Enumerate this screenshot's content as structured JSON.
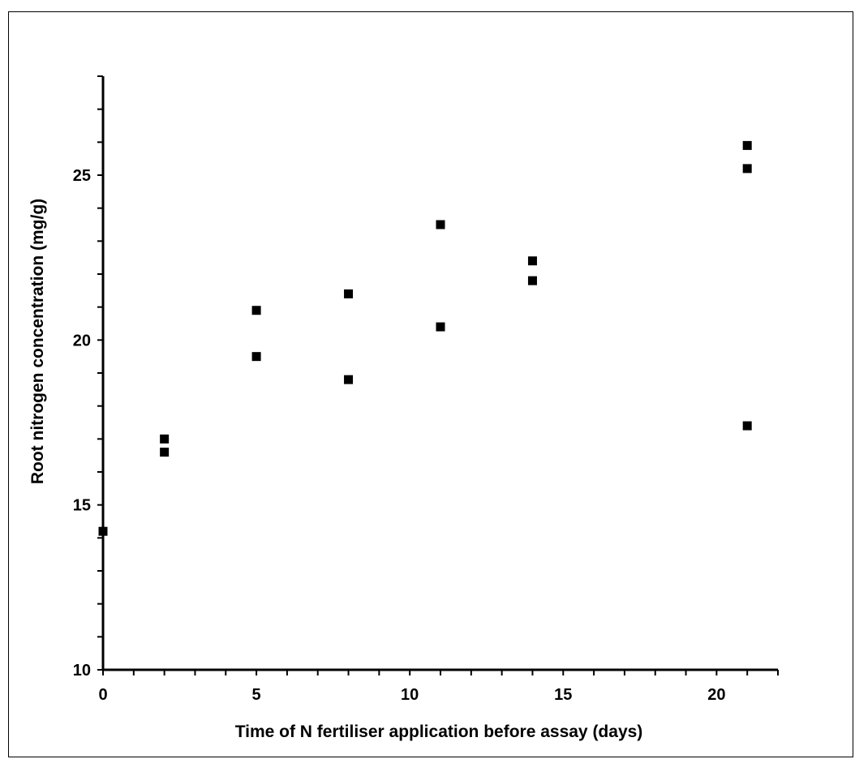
{
  "chart_data": {
    "type": "scatter",
    "title": "",
    "xlabel": "Time of N fertiliser application before assay (days)",
    "ylabel": "Root nitrogen concentration (mg/g)",
    "xlim": [
      0,
      22
    ],
    "ylim": [
      10,
      28
    ],
    "x_ticks": [
      0,
      5,
      10,
      15,
      20
    ],
    "y_ticks": [
      10,
      15,
      20,
      25
    ],
    "x_tick_labels": [
      "0",
      "5",
      "10",
      "15",
      "20"
    ],
    "y_tick_labels": [
      "10",
      "15",
      "20",
      "25"
    ],
    "x_minor_step": 1,
    "y_minor_step": 1,
    "grid": false,
    "legend": "none",
    "marker": "square",
    "marker_color": "#000000",
    "series": [
      {
        "x": [
          0,
          2,
          2,
          5,
          5,
          8,
          8,
          11,
          11,
          14,
          14,
          21,
          21,
          21
        ],
        "y": [
          14.2,
          17.0,
          16.6,
          20.9,
          19.5,
          21.4,
          18.8,
          23.5,
          20.4,
          22.4,
          21.8,
          25.9,
          25.2,
          17.4
        ]
      }
    ]
  }
}
